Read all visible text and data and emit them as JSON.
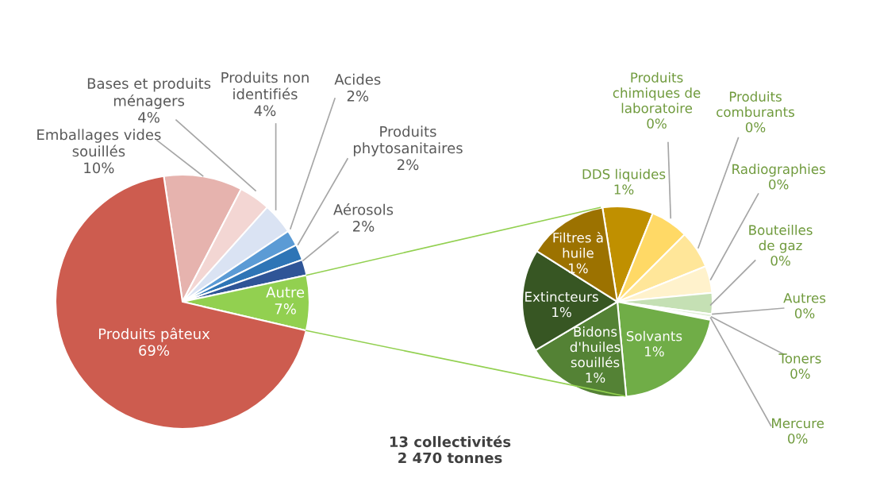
{
  "chart_data": [
    {
      "type": "pie",
      "categories": [
        "Emballages vides\nsouillés",
        "Bases et produits\nménagers",
        "Produits non\nidentifiés",
        "Acides",
        "Produits\nphytosanitaires",
        "Aérosols",
        "Autre",
        "Produits pâteux"
      ],
      "values": [
        10,
        4,
        4,
        2,
        2,
        2,
        7,
        69
      ],
      "value_labels": [
        "10%",
        "4%",
        "4%",
        "2%",
        "2%",
        "2%",
        "7%",
        "69%"
      ],
      "colors": [
        "#e6b3ae",
        "#f3d6d3",
        "#dae3f3",
        "#5b9bd5",
        "#2e75b6",
        "#2f5597",
        "#92d050",
        "#cd5c4f"
      ],
      "annotations": [
        "13 collectivités\n2 470 tonnes"
      ]
    },
    {
      "type": "pie",
      "categories": [
        "DDS liquides",
        "Produits\nchimiques de\nlaboratoire",
        "Produits\ncomburants",
        "Radiographies",
        "Bouteilles\nde gaz",
        "Autres",
        "Toners",
        "Mercure",
        "Solvants",
        "Bidons\nd'huiles\nsouillés",
        "Extincteurs",
        "Filtres à\nhuile"
      ],
      "values": [
        0.6,
        0.45,
        0.45,
        0.32,
        0.25,
        0.04,
        0.02,
        0.01,
        1.43,
        1.26,
        1.22,
        0.95
      ],
      "value_labels": [
        "1%",
        "0%",
        "0%",
        "0%",
        "0%",
        "0%",
        "0%",
        "0%",
        "1%",
        "1%",
        "1%",
        "1%"
      ],
      "colors": [
        "#c09000",
        "#ffd966",
        "#ffe699",
        "#fff2cc",
        "#c5e0b4",
        "#e2f0d9",
        "#a9d18e",
        "#d9d9d9",
        "#70ad47",
        "#548235",
        "#375623",
        "#9c7200"
      ]
    }
  ]
}
